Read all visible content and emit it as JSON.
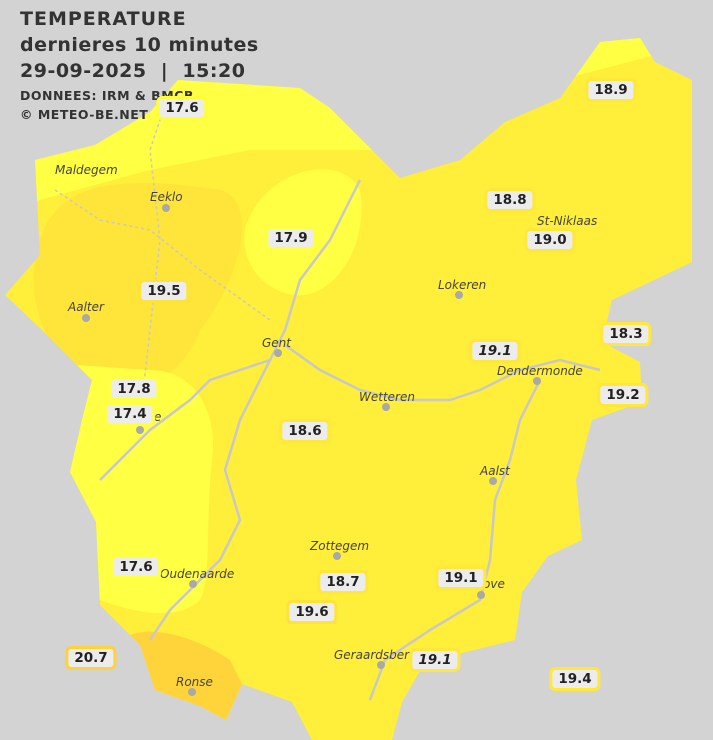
{
  "header": {
    "title": "TEMPERATURE",
    "subtitle": "dernieres 10 minutes",
    "datetime": "29-09-2025  |  15:20",
    "source": "DONNEES: IRM & BMCB",
    "copyright": "© METEO-BE.NET"
  },
  "colors": {
    "background": "#d3d3d3",
    "temp_17": "#ffff44",
    "temp_18_19": "#ffee3a",
    "temp_19_5": "#ffe23a",
    "temp_20": "#ffd43a",
    "river": "#c8c8c8"
  },
  "cities": [
    {
      "name": "Maldegem"
    },
    {
      "name": "Eeklo"
    },
    {
      "name": "St-Niklaas"
    },
    {
      "name": "Lokeren"
    },
    {
      "name": "Aalter"
    },
    {
      "name": "Gent"
    },
    {
      "name": "Dendermonde"
    },
    {
      "name": "Wetteren"
    },
    {
      "name": "e"
    },
    {
      "name": "Aalst"
    },
    {
      "name": "Zottegem"
    },
    {
      "name": "Oudenaarde"
    },
    {
      "name": "ove"
    },
    {
      "name": "Geraardsberg"
    },
    {
      "name": "Ronse"
    }
  ],
  "readings": [
    {
      "value": "17.6",
      "italic": false
    },
    {
      "value": "18.9",
      "italic": false
    },
    {
      "value": "18.8",
      "italic": false
    },
    {
      "value": "19.0",
      "italic": false
    },
    {
      "value": "17.9",
      "italic": false
    },
    {
      "value": "19.5",
      "italic": false
    },
    {
      "value": "18.3",
      "italic": false
    },
    {
      "value": "19.1",
      "italic": true
    },
    {
      "value": "19.2",
      "italic": false
    },
    {
      "value": "17.8",
      "italic": false
    },
    {
      "value": "17.4",
      "italic": false
    },
    {
      "value": "18.6",
      "italic": false
    },
    {
      "value": "17.6",
      "italic": false
    },
    {
      "value": "18.7",
      "italic": false
    },
    {
      "value": "19.1",
      "italic": false
    },
    {
      "value": "19.6",
      "italic": false
    },
    {
      "value": "20.7",
      "italic": false
    },
    {
      "value": "19.1",
      "italic": true
    },
    {
      "value": "19.4",
      "italic": false
    }
  ]
}
